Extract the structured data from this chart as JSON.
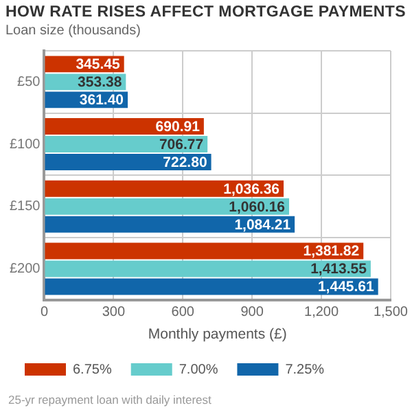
{
  "chart_data": {
    "type": "bar",
    "orientation": "horizontal",
    "title": "HOW RATE RISES AFFECT MORTGAGE PAYMENTS",
    "ylabel": "Loan size (thousands)",
    "xlabel": "Monthly payments (£)",
    "categories": [
      "£50",
      "£100",
      "£150",
      "£200"
    ],
    "series": [
      {
        "name": "6.75%",
        "color": "#cc3300",
        "values": [
          345.45,
          690.91,
          1036.36,
          1381.82
        ],
        "value_labels": [
          "345.45",
          "690.91",
          "1,036.36",
          "1,381.82"
        ]
      },
      {
        "name": "7.00%",
        "color": "#66cccc",
        "values": [
          353.38,
          706.77,
          1060.16,
          1413.55
        ],
        "value_labels": [
          "353.38",
          "706.77",
          "1,060.16",
          "1,413.55"
        ]
      },
      {
        "name": "7.25%",
        "color": "#1166aa",
        "values": [
          361.4,
          722.8,
          1084.21,
          1445.61
        ],
        "value_labels": [
          "361.40",
          "722.80",
          "1,084.21",
          "1,445.61"
        ]
      }
    ],
    "xlim": [
      0,
      1500
    ],
    "xticks": [
      0,
      300,
      600,
      900,
      {
        "value": 1200,
        "label": "1,200"
      },
      {
        "value": 1500,
        "label": "1,500"
      }
    ],
    "grid": true,
    "legend": "bottom",
    "annotations": [
      "25-yr repayment loan with daily interest"
    ]
  }
}
